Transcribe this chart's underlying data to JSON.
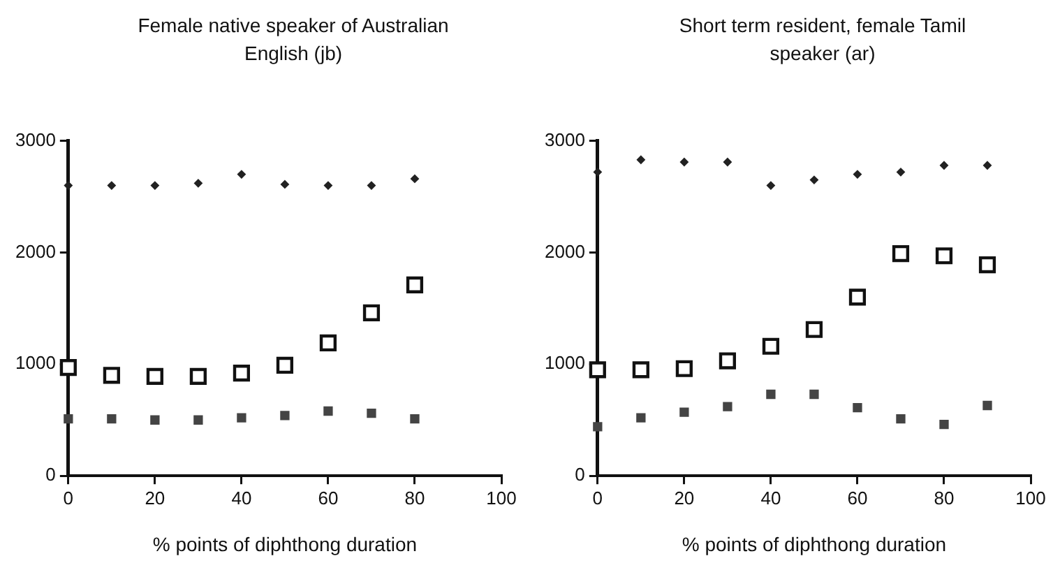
{
  "chart_data": [
    {
      "type": "scatter",
      "title": "Female native speaker of Australian English (jb)",
      "xlabel": "% points of diphthong duration",
      "x": [
        0,
        10,
        20,
        30,
        40,
        50,
        60,
        70,
        80
      ],
      "xlim": [
        0,
        100
      ],
      "xticks": [
        0,
        20,
        40,
        60,
        80,
        100
      ],
      "ylim": [
        0,
        3000
      ],
      "yticks": [
        0,
        1000,
        2000,
        3000
      ],
      "grid": false,
      "legend": false,
      "series": [
        {
          "color": "#222222",
          "marker": "diamond",
          "values": [
            2600,
            2600,
            2600,
            2620,
            2700,
            2610,
            2600,
            2600,
            2660
          ]
        },
        {
          "color": "#111111",
          "marker": "square",
          "values": [
            970,
            900,
            890,
            890,
            920,
            990,
            1190,
            1460,
            1710
          ]
        },
        {
          "color": "#444444",
          "marker": "square",
          "values": [
            510,
            510,
            500,
            500,
            520,
            540,
            580,
            560,
            510
          ]
        }
      ]
    },
    {
      "type": "scatter",
      "title": "Short term resident, female Tamil speaker (ar)",
      "xlabel": "% points of diphthong duration",
      "x": [
        0,
        10,
        20,
        30,
        40,
        50,
        60,
        70,
        80,
        90
      ],
      "xlim": [
        0,
        100
      ],
      "xticks": [
        0,
        20,
        40,
        60,
        80,
        100
      ],
      "ylim": [
        0,
        3000
      ],
      "yticks": [
        0,
        1000,
        2000,
        3000
      ],
      "grid": false,
      "legend": false,
      "series": [
        {
          "color": "#222222",
          "marker": "diamond",
          "values": [
            2720,
            2830,
            2810,
            2810,
            2600,
            2650,
            2700,
            2720,
            2780,
            2780
          ]
        },
        {
          "color": "#111111",
          "marker": "square",
          "values": [
            950,
            950,
            960,
            1030,
            1160,
            1310,
            1600,
            1990,
            1970,
            1890
          ]
        },
        {
          "color": "#444444",
          "marker": "square",
          "values": [
            440,
            520,
            570,
            620,
            730,
            730,
            610,
            510,
            460,
            630
          ]
        }
      ]
    }
  ]
}
